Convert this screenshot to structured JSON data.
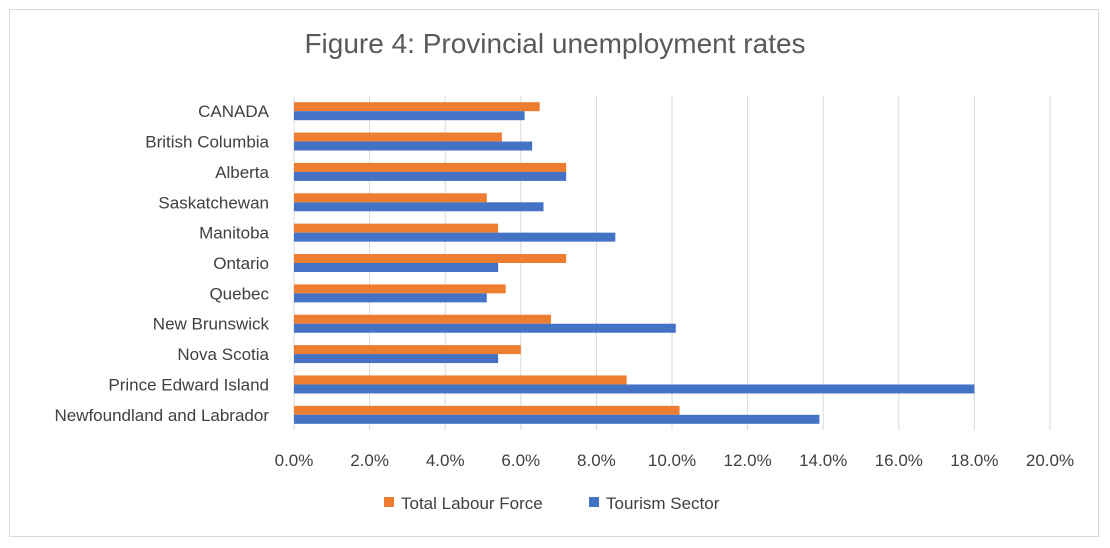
{
  "chart_data": {
    "type": "bar",
    "orientation": "horizontal",
    "title": "Figure 4: Provincial unemployment rates",
    "categories": [
      "CANADA",
      "British Columbia",
      "Alberta",
      "Saskatchewan",
      "Manitoba",
      "Ontario",
      "Quebec",
      "New Brunswick",
      "Nova Scotia",
      "Prince Edward Island",
      "Newfoundland and Labrador"
    ],
    "series": [
      {
        "name": "Total Labour Force",
        "color": "#ed7d31",
        "values": [
          6.5,
          5.5,
          7.2,
          5.1,
          5.4,
          7.2,
          5.6,
          6.8,
          6.0,
          8.8,
          10.2
        ]
      },
      {
        "name": "Tourism Sector",
        "color": "#4472c4",
        "values": [
          6.1,
          6.3,
          7.2,
          6.6,
          8.5,
          5.4,
          5.1,
          10.1,
          5.4,
          18.0,
          13.9
        ]
      }
    ],
    "xlim": [
      0,
      20
    ],
    "xticks": [
      "0.0%",
      "2.0%",
      "4.0%",
      "6.0%",
      "8.0%",
      "10.0%",
      "12.0%",
      "14.0%",
      "16.0%",
      "18.0%",
      "20.0%"
    ],
    "grid": true,
    "legend_position": "bottom"
  }
}
